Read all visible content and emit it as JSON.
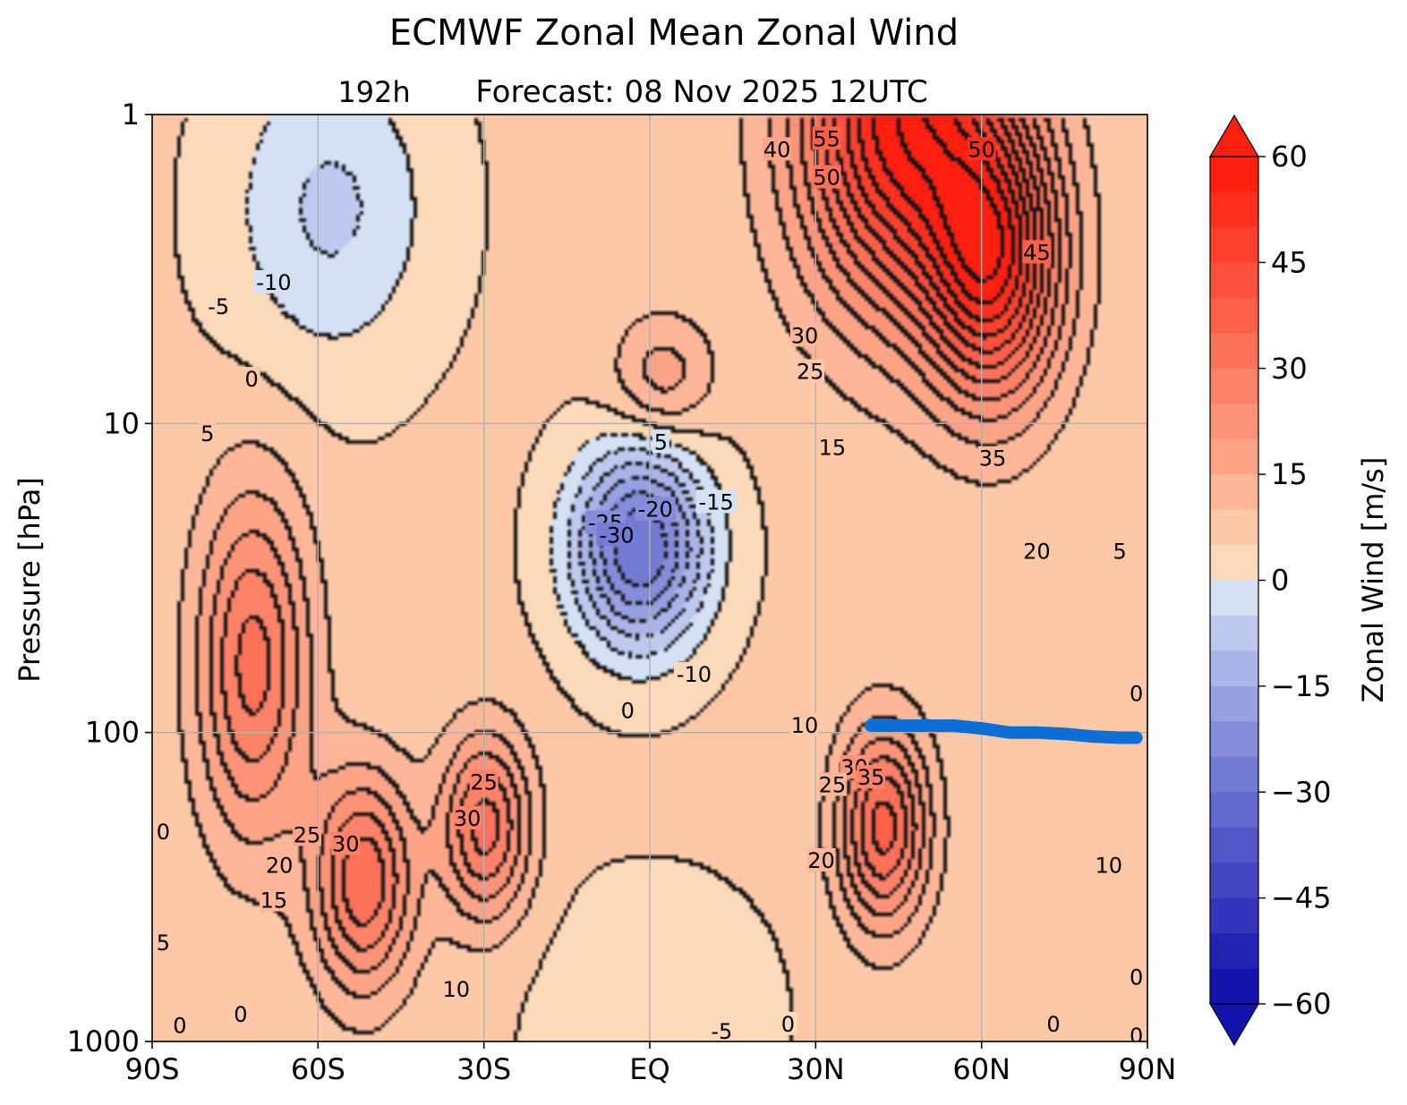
{
  "chart_data": {
    "type": "contour",
    "title": "ECMWF Zonal Mean Zonal Wind",
    "subtitle_left": "192h",
    "subtitle": "Forecast:  08 Nov 2025  12UTC",
    "xlabel": "",
    "ylabel": "Pressure [hPa]",
    "x_ticks": [
      {
        "value": -90,
        "label": "90S"
      },
      {
        "value": -60,
        "label": "60S"
      },
      {
        "value": -30,
        "label": "30S"
      },
      {
        "value": 0,
        "label": "EQ"
      },
      {
        "value": 30,
        "label": "30N"
      },
      {
        "value": 60,
        "label": "60N"
      },
      {
        "value": 90,
        "label": "90N"
      }
    ],
    "y_ticks": [
      {
        "value": 1,
        "label": "1"
      },
      {
        "value": 10,
        "label": "10"
      },
      {
        "value": 100,
        "label": "100"
      },
      {
        "value": 1000,
        "label": "1000"
      }
    ],
    "xlim": [
      -90,
      90
    ],
    "ylim": [
      1000,
      1
    ],
    "y_scale": "log",
    "grid": true,
    "colorbar": {
      "label": "Zonal Wind [m/s]",
      "min": -60,
      "max": 60,
      "step": 5,
      "extend": "both",
      "ticks": [
        {
          "value": 60,
          "label": "60"
        },
        {
          "value": 45,
          "label": "45"
        },
        {
          "value": 30,
          "label": "30"
        },
        {
          "value": 15,
          "label": "15"
        },
        {
          "value": 0,
          "label": "0"
        },
        {
          "value": -15,
          "label": "−15"
        },
        {
          "value": -30,
          "label": "−30"
        },
        {
          "value": -45,
          "label": "−45"
        },
        {
          "value": -60,
          "label": "−60"
        }
      ]
    },
    "wind_features": [
      {
        "name": "nh-stratospheric-jet",
        "lat": 45,
        "p": 1,
        "u": 58,
        "lat_width": 18,
        "p_width": 0.6
      },
      {
        "name": "nh-polar-night-jet",
        "lat": 62,
        "p": 3,
        "u": 50,
        "lat_width": 12,
        "p_width": 0.45
      },
      {
        "name": "qbo-easterly",
        "lat": -2,
        "p": 25,
        "u": -36,
        "lat_width": 12,
        "p_width": 0.32
      },
      {
        "name": "equatorial-upper-westerly",
        "lat": 2,
        "p": 7,
        "u": 18,
        "lat_width": 9,
        "p_width": 0.2
      },
      {
        "name": "sh-mid-easterly",
        "lat": -58,
        "p": 2,
        "u": -12,
        "lat_width": 18,
        "p_width": 0.5
      },
      {
        "name": "sh-polar-jet",
        "lat": -72,
        "p": 60,
        "u": 32,
        "lat_width": 10,
        "p_width": 0.55
      },
      {
        "name": "sh-subtropical-jet",
        "lat": -52,
        "p": 300,
        "u": 34,
        "lat_width": 9,
        "p_width": 0.35
      },
      {
        "name": "sh-secondary-jet",
        "lat": -30,
        "p": 200,
        "u": 32,
        "lat_width": 8,
        "p_width": 0.3
      },
      {
        "name": "nh-subtropical-jet",
        "lat": 42,
        "p": 200,
        "u": 37,
        "lat_width": 8,
        "p_width": 0.32
      },
      {
        "name": "surface-easterly",
        "lat": 0,
        "p": 800,
        "u": -5,
        "lat_width": 20,
        "p_width": 0.4
      }
    ],
    "contour_labels": [
      {
        "text": "-10",
        "lat": -68,
        "p": 3.5
      },
      {
        "text": "-5",
        "lat": -78,
        "p": 4.2
      },
      {
        "text": "0",
        "lat": -72,
        "p": 7.2
      },
      {
        "text": "5",
        "lat": -80,
        "p": 10.8
      },
      {
        "text": "5",
        "lat": 2,
        "p": 11.5
      },
      {
        "text": "-15",
        "lat": 12,
        "p": 18
      },
      {
        "text": "-20",
        "lat": 1,
        "p": 19
      },
      {
        "text": "-25",
        "lat": -8,
        "p": 21
      },
      {
        "text": "-30",
        "lat": -6,
        "p": 23
      },
      {
        "text": "-10",
        "lat": 8,
        "p": 65
      },
      {
        "text": "0",
        "lat": -4,
        "p": 85
      },
      {
        "text": "40",
        "lat": 23,
        "p": 1.3
      },
      {
        "text": "55",
        "lat": 32,
        "p": 1.2
      },
      {
        "text": "50",
        "lat": 32,
        "p": 1.6
      },
      {
        "text": "50",
        "lat": 60,
        "p": 1.3
      },
      {
        "text": "45",
        "lat": 70,
        "p": 2.8
      },
      {
        "text": "30",
        "lat": 28,
        "p": 5.2
      },
      {
        "text": "25",
        "lat": 29,
        "p": 6.8
      },
      {
        "text": "35",
        "lat": 62,
        "p": 13
      },
      {
        "text": "15",
        "lat": 33,
        "p": 12
      },
      {
        "text": "20",
        "lat": 70,
        "p": 26
      },
      {
        "text": "5",
        "lat": 85,
        "p": 26
      },
      {
        "text": "10",
        "lat": 28,
        "p": 95
      },
      {
        "text": "25",
        "lat": -30,
        "p": 145
      },
      {
        "text": "30",
        "lat": -33,
        "p": 190
      },
      {
        "text": "25",
        "lat": -62,
        "p": 215
      },
      {
        "text": "30",
        "lat": -55,
        "p": 230
      },
      {
        "text": "20",
        "lat": -67,
        "p": 270
      },
      {
        "text": "15",
        "lat": -68,
        "p": 350
      },
      {
        "text": "10",
        "lat": -35,
        "p": 680
      },
      {
        "text": "30",
        "lat": 37,
        "p": 130
      },
      {
        "text": "35",
        "lat": 40,
        "p": 140
      },
      {
        "text": "25",
        "lat": 33,
        "p": 148
      },
      {
        "text": "20",
        "lat": 31,
        "p": 260
      },
      {
        "text": "10",
        "lat": 83,
        "p": 270
      },
      {
        "text": "0",
        "lat": -88,
        "p": 210
      },
      {
        "text": "5",
        "lat": -88,
        "p": 480
      },
      {
        "text": "0",
        "lat": -85,
        "p": 890
      },
      {
        "text": "0",
        "lat": -74,
        "p": 820
      },
      {
        "text": "0",
        "lat": 25,
        "p": 880
      },
      {
        "text": "-5",
        "lat": 13,
        "p": 930
      },
      {
        "text": "0",
        "lat": 73,
        "p": 880
      },
      {
        "text": "0",
        "lat": 88,
        "p": 75
      },
      {
        "text": "0",
        "lat": 88,
        "p": 620
      },
      {
        "text": "0",
        "lat": 88,
        "p": 960
      }
    ],
    "tropopause_line": {
      "lats": [
        40,
        45,
        50,
        55,
        60,
        65,
        70,
        75,
        80,
        85,
        88
      ],
      "p": [
        95,
        95,
        95,
        95,
        97,
        100,
        100,
        101,
        103,
        104,
        104
      ]
    }
  }
}
